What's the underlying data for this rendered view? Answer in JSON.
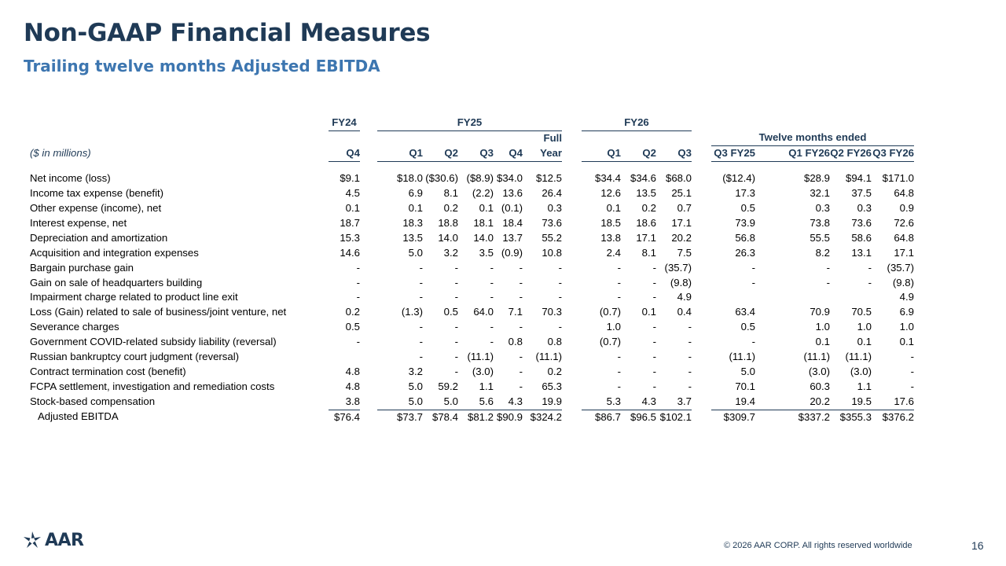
{
  "title": "Non-GAAP Financial Measures",
  "subtitle": "Trailing twelve months Adjusted EBITDA",
  "table": {
    "units_label": "($ in millions)",
    "groups": {
      "fy24": "FY24",
      "fy25": "FY25",
      "fy26": "FY26",
      "ttm": "Twelve months ended"
    },
    "full_top": "Full",
    "columns": [
      "Q4",
      "Q1",
      "Q2",
      "Q3",
      "Q4",
      "Year",
      "Q1",
      "Q2",
      "Q3",
      "Q3 FY25",
      "Q1 FY26",
      "Q2 FY26",
      "Q3 FY26"
    ],
    "rows": [
      {
        "label": "Net income (loss)",
        "values": [
          "$9.1",
          "$18.0",
          "($30.6)",
          "($8.9)",
          "$34.0",
          "$12.5",
          "$34.4",
          "$34.6",
          "$68.0",
          "($12.4)",
          "$28.9",
          "$94.1",
          "$171.0"
        ]
      },
      {
        "label": "Income tax expense (benefit)",
        "values": [
          "4.5",
          "6.9",
          "8.1",
          "(2.2)",
          "13.6",
          "26.4",
          "12.6",
          "13.5",
          "25.1",
          "17.3",
          "32.1",
          "37.5",
          "64.8"
        ]
      },
      {
        "label": "Other expense (income), net",
        "values": [
          "0.1",
          "0.1",
          "0.2",
          "0.1",
          "(0.1)",
          "0.3",
          "0.1",
          "0.2",
          "0.7",
          "0.5",
          "0.3",
          "0.3",
          "0.9"
        ]
      },
      {
        "label": "Interest expense, net",
        "values": [
          "18.7",
          "18.3",
          "18.8",
          "18.1",
          "18.4",
          "73.6",
          "18.5",
          "18.6",
          "17.1",
          "73.9",
          "73.8",
          "73.6",
          "72.6"
        ]
      },
      {
        "label": "Depreciation and amortization",
        "values": [
          "15.3",
          "13.5",
          "14.0",
          "14.0",
          "13.7",
          "55.2",
          "13.8",
          "17.1",
          "20.2",
          "56.8",
          "55.5",
          "58.6",
          "64.8"
        ]
      },
      {
        "label": "Acquisition and integration expenses",
        "values": [
          "14.6",
          "5.0",
          "3.2",
          "3.5",
          "(0.9)",
          "10.8",
          "2.4",
          "8.1",
          "7.5",
          "26.3",
          "8.2",
          "13.1",
          "17.1"
        ]
      },
      {
        "label": "Bargain purchase gain",
        "values": [
          "-",
          "-",
          "-",
          "-",
          "-",
          "-",
          "-",
          "-",
          "(35.7)",
          "-",
          "-",
          "-",
          "(35.7)"
        ]
      },
      {
        "label": "Gain on sale of headquarters building",
        "values": [
          "-",
          "-",
          "-",
          "-",
          "-",
          "-",
          "-",
          "-",
          "(9.8)",
          "-",
          "-",
          "-",
          "(9.8)"
        ]
      },
      {
        "label": "Impairment charge related to product line exit",
        "values": [
          "-",
          "-",
          "-",
          "-",
          "-",
          "-",
          "-",
          "-",
          "4.9",
          "",
          "",
          "",
          "4.9"
        ]
      },
      {
        "label": "Loss (Gain) related to sale of business/joint venture, net",
        "values": [
          "0.2",
          "(1.3)",
          "0.5",
          "64.0",
          "7.1",
          "70.3",
          "(0.7)",
          "0.1",
          "0.4",
          "63.4",
          "70.9",
          "70.5",
          "6.9"
        ]
      },
      {
        "label": "Severance charges",
        "values": [
          "0.5",
          "-",
          "-",
          "-",
          "-",
          "-",
          "1.0",
          "-",
          "-",
          "0.5",
          "1.0",
          "1.0",
          "1.0"
        ]
      },
      {
        "label": "Government COVID-related subsidy liability (reversal)",
        "values": [
          "-",
          "-",
          "-",
          "-",
          "0.8",
          "0.8",
          "(0.7)",
          "-",
          "-",
          "-",
          "0.1",
          "0.1",
          "0.1"
        ]
      },
      {
        "label": "Russian bankruptcy court judgment (reversal)",
        "values": [
          "",
          "-",
          "-",
          "(11.1)",
          "-",
          "(11.1)",
          "-",
          "-",
          "-",
          "(11.1)",
          "(11.1)",
          "(11.1)",
          "-"
        ]
      },
      {
        "label": "Contract termination cost (benefit)",
        "values": [
          "4.8",
          "3.2",
          "-",
          "(3.0)",
          "-",
          "0.2",
          "-",
          "-",
          "-",
          "5.0",
          "(3.0)",
          "(3.0)",
          "-"
        ]
      },
      {
        "label": "FCPA settlement, investigation and remediation costs",
        "values": [
          "4.8",
          "5.0",
          "59.2",
          "1.1",
          "-",
          "65.3",
          "-",
          "-",
          "-",
          "70.1",
          "60.3",
          "1.1",
          "-"
        ]
      },
      {
        "label": "Stock-based compensation",
        "values": [
          "3.8",
          "5.0",
          "5.0",
          "5.6",
          "4.3",
          "19.9",
          "5.3",
          "4.3",
          "3.7",
          "19.4",
          "20.2",
          "19.5",
          "17.6"
        ]
      }
    ],
    "total": {
      "label": "Adjusted EBITDA",
      "values": [
        "$76.4",
        "$73.7",
        "$78.4",
        "$81.2",
        "$90.9",
        "$324.2",
        "$86.7",
        "$96.5",
        "$102.1",
        "$309.7",
        "$337.2",
        "$355.3",
        "$376.2"
      ]
    }
  },
  "logo_text": "AAR",
  "footer": "© 2026 AAR CORP. All rights reserved worldwide",
  "page_number": "16",
  "colors": {
    "navy": "#1f3a56",
    "accent_blue": "#3d76b0"
  }
}
